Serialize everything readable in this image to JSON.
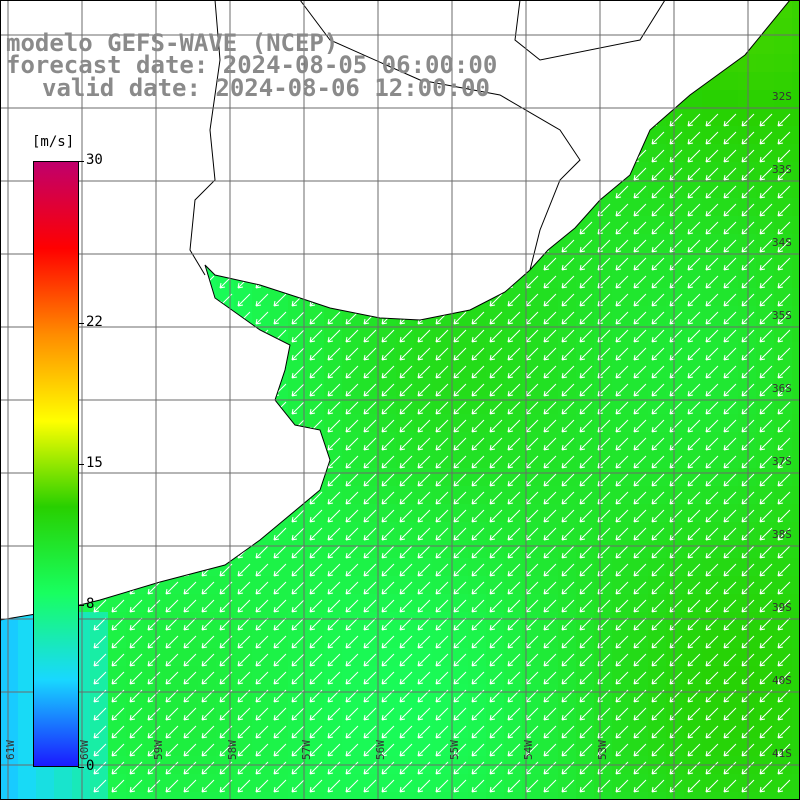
{
  "header": {
    "line1": "modelo GEFS-WAVE (NCEP)",
    "line2": "forecast date: 2024-08-05 06:00:00",
    "line3": "valid date: 2024-08-06 12:00:00"
  },
  "colorbar": {
    "unit": "[m/s]",
    "min": 0,
    "max": 30,
    "ticks": [
      "30",
      "22",
      "15",
      "8",
      "0"
    ],
    "tick_values": [
      30,
      22,
      15,
      8,
      0
    ],
    "colors": [
      "#1a1aff",
      "#18d8ff",
      "#18ff60",
      "#28d000",
      "#ffff00",
      "#ff8c00",
      "#ff0000",
      "#c0006c"
    ]
  },
  "map": {
    "lat_labels": [
      "32S",
      "33S",
      "34S",
      "35S",
      "36S",
      "37S",
      "38S",
      "39S",
      "40S",
      "41S"
    ],
    "lon_labels": [
      "61W",
      "60W",
      "59W",
      "58W",
      "57W",
      "56W",
      "55W",
      "54W",
      "53W"
    ],
    "lon_range": [
      -61.5,
      -51.0
    ],
    "lat_range": [
      -31.0,
      -41.5
    ],
    "colors": {
      "land": "#ffffff",
      "grid": "#6b6b6b",
      "coast": "#000000",
      "arrow": "#ffffff"
    },
    "wind_direction": "from NE",
    "dominant_speed_ms": "8-12"
  }
}
